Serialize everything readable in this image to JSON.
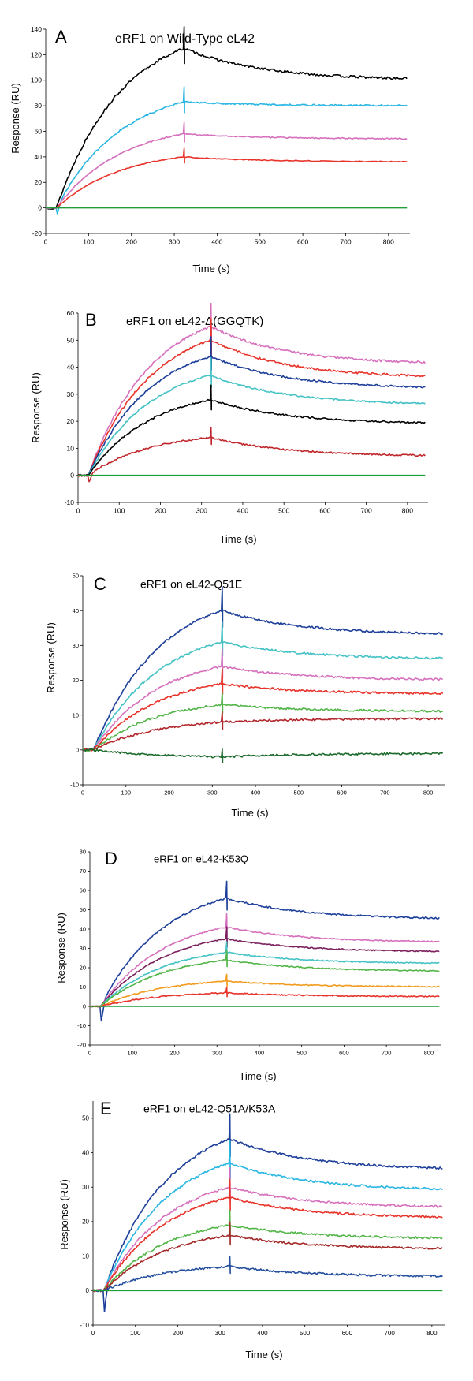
{
  "chart_data": [
    {
      "type": "line",
      "panel": "A",
      "title": "eRF1 on Wild-Type eL42",
      "xlabel": "Time (s)",
      "ylabel": "Response (RU)",
      "xlim": [
        0,
        850
      ],
      "ylim": [
        -20,
        140
      ],
      "xticks": [
        0,
        100,
        200,
        300,
        400,
        500,
        600,
        700,
        800
      ],
      "yticks": [
        -20,
        0,
        20,
        40,
        60,
        80,
        100,
        120,
        140
      ],
      "grid": false,
      "series": [
        {
          "color": "#000000",
          "plateau": 125,
          "dissoc_end": 100,
          "dip": 0
        },
        {
          "color": "#29b6e3",
          "plateau": 83,
          "dissoc_end": 80,
          "dip": -7
        },
        {
          "color": "#d670bd",
          "plateau": 58,
          "dissoc_end": 54,
          "dip": 0
        },
        {
          "color": "#e8332a",
          "plateau": 40,
          "dissoc_end": 36,
          "dip": 0
        },
        {
          "color": "#1f9e3a",
          "plateau": 0,
          "dissoc_end": 0,
          "dip": 0
        }
      ]
    },
    {
      "type": "line",
      "panel": "B",
      "title": "eRF1 on eL42-Δ(GGQTK)",
      "xlabel": "Time (s)",
      "ylabel": "Response (RU)",
      "xlim": [
        0,
        850
      ],
      "ylim": [
        -10,
        60
      ],
      "xticks": [
        0,
        100,
        200,
        300,
        400,
        500,
        600,
        700,
        800
      ],
      "yticks": [
        -10,
        0,
        10,
        20,
        30,
        40,
        50,
        60
      ],
      "grid": false,
      "series": [
        {
          "color": "#d670bd",
          "plateau": 55,
          "dissoc_end": 41,
          "dip": 0
        },
        {
          "color": "#e8332a",
          "plateau": 50,
          "dissoc_end": 36,
          "dip": 0
        },
        {
          "color": "#1d3f9a",
          "plateau": 44,
          "dissoc_end": 32,
          "dip": 0
        },
        {
          "color": "#44c2c4",
          "plateau": 37,
          "dissoc_end": 26,
          "dip": 0
        },
        {
          "color": "#000000",
          "plateau": 28,
          "dissoc_end": 19,
          "dip": 0
        },
        {
          "color": "#c0262b",
          "plateau": 14,
          "dissoc_end": 7,
          "dip": -3
        },
        {
          "color": "#1f9e3a",
          "plateau": 0,
          "dissoc_end": 0,
          "dip": 0
        }
      ]
    },
    {
      "type": "line",
      "panel": "C",
      "title": "eRF1 on eL42-Q51E",
      "xlabel": "Time (s)",
      "ylabel": "Response (RU)",
      "xlim": [
        0,
        840
      ],
      "ylim": [
        -10,
        50
      ],
      "xticks": [
        0,
        100,
        200,
        300,
        400,
        500,
        600,
        700,
        800
      ],
      "yticks": [
        -10,
        0,
        10,
        20,
        30,
        40,
        50
      ],
      "grid": false,
      "series": [
        {
          "color": "#1d3f9a",
          "plateau": 40,
          "dissoc_end": 33,
          "dip": 0
        },
        {
          "color": "#44c2c4",
          "plateau": 31,
          "dissoc_end": 26,
          "dip": 0
        },
        {
          "color": "#d670bd",
          "plateau": 24,
          "dissoc_end": 20,
          "dip": 0
        },
        {
          "color": "#e8332a",
          "plateau": 19,
          "dissoc_end": 16,
          "dip": 0
        },
        {
          "color": "#52b548",
          "plateau": 13,
          "dissoc_end": 11,
          "dip": 0
        },
        {
          "color": "#b3262c",
          "plateau": 8,
          "dissoc_end": 9,
          "dip": 0
        },
        {
          "color": "#1d6b2c",
          "plateau": -2,
          "dissoc_end": -1,
          "dip": 0
        }
      ]
    },
    {
      "type": "line",
      "panel": "D",
      "title": "eRF1 on eL42-K53Q",
      "xlabel": "Time (s)",
      "ylabel": "Response (RU)",
      "xlim": [
        0,
        830
      ],
      "ylim": [
        -20,
        80
      ],
      "xticks": [
        0,
        100,
        200,
        300,
        400,
        500,
        600,
        700,
        800
      ],
      "yticks": [
        -20,
        -10,
        0,
        10,
        20,
        30,
        40,
        50,
        60,
        70,
        80
      ],
      "grid": false,
      "series": [
        {
          "color": "#1d3f9a",
          "plateau": 56,
          "dissoc_end": 45,
          "dip": -10
        },
        {
          "color": "#d670bd",
          "plateau": 41,
          "dissoc_end": 33,
          "dip": 0
        },
        {
          "color": "#7a1f5c",
          "plateau": 35,
          "dissoc_end": 28,
          "dip": 0
        },
        {
          "color": "#44c2c4",
          "plateau": 28,
          "dissoc_end": 22,
          "dip": 0
        },
        {
          "color": "#52b548",
          "plateau": 24,
          "dissoc_end": 18,
          "dip": 0
        },
        {
          "color": "#f29b1d",
          "plateau": 13,
          "dissoc_end": 10,
          "dip": 0
        },
        {
          "color": "#e8332a",
          "plateau": 7,
          "dissoc_end": 5,
          "dip": 0
        },
        {
          "color": "#1f9e3a",
          "plateau": 0,
          "dissoc_end": 0,
          "dip": 0
        }
      ]
    },
    {
      "type": "line",
      "panel": "E",
      "title": "eRF1 on eL42-Q51A/K53A",
      "xlabel": "Time (s)",
      "ylabel": "Response (RU)",
      "xlim": [
        0,
        830
      ],
      "ylim": [
        -10,
        55
      ],
      "xticks": [
        0,
        100,
        200,
        300,
        400,
        500,
        600,
        700,
        800
      ],
      "yticks": [
        -10,
        0,
        10,
        20,
        30,
        40,
        50
      ],
      "grid": false,
      "series": [
        {
          "color": "#1d3f9a",
          "plateau": 44,
          "dissoc_end": 35,
          "dip": -8
        },
        {
          "color": "#29b6e3",
          "plateau": 37,
          "dissoc_end": 29,
          "dip": 0
        },
        {
          "color": "#d670bd",
          "plateau": 30,
          "dissoc_end": 24,
          "dip": 0
        },
        {
          "color": "#e8332a",
          "plateau": 27,
          "dissoc_end": 21,
          "dip": 0
        },
        {
          "color": "#52b548",
          "plateau": 19,
          "dissoc_end": 15,
          "dip": 0
        },
        {
          "color": "#a52a2a",
          "plateau": 16,
          "dissoc_end": 12,
          "dip": 0
        },
        {
          "color": "#244f9e",
          "plateau": 7,
          "dissoc_end": 4,
          "dip": 0
        },
        {
          "color": "#1f9e3a",
          "plateau": 0,
          "dissoc_end": 0,
          "dip": 0
        }
      ]
    }
  ]
}
